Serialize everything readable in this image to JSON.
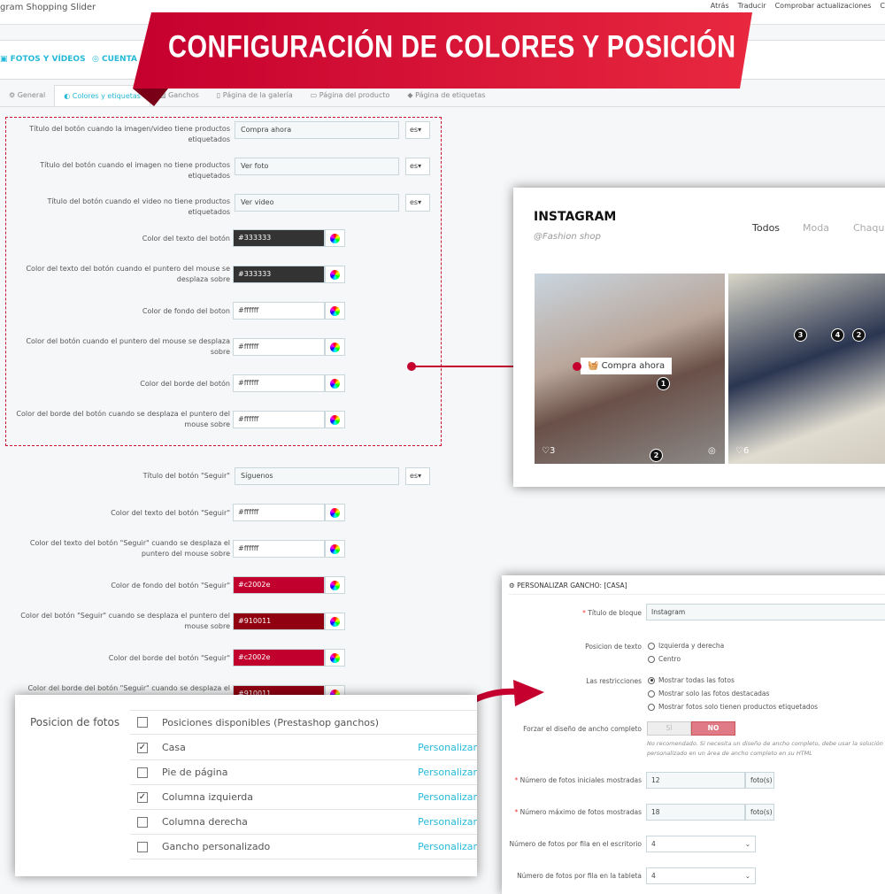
{
  "header": {
    "brand": "gram Shopping Slider",
    "links": [
      "Atrás",
      "Traducir",
      "Comprobar actualizaciones",
      "C"
    ]
  },
  "nav": {
    "items": [
      "FOTOS Y VÍDEOS",
      "CUENTA DE"
    ]
  },
  "tabs": [
    "General",
    "Colores y etiquetas",
    "Ganchos",
    "Página de la galería",
    "Página del producto",
    "Página de etiquetas"
  ],
  "banner": {
    "title": "CONFIGURACIÓN DE COLORES Y POSICIÓN"
  },
  "form": {
    "text_rows": [
      {
        "label": "Título del botón cuando la imagen/video tiene productos etiquetados",
        "value": "Compra ahora",
        "lang": "es"
      },
      {
        "label": "Título del botón cuando el imagen no tiene productos etiquetados",
        "value": "Ver foto",
        "lang": "es"
      },
      {
        "label": "Título del botón cuando el video no tiene productos etiquetados",
        "value": "Ver video",
        "lang": "es"
      }
    ],
    "color_rows": [
      {
        "label": "Color del texto del botón",
        "value": "#333333",
        "color": "#333333"
      },
      {
        "label": "Color del texto del botón cuando el puntero del mouse se desplaza sobre",
        "value": "#333333",
        "color": "#333333"
      },
      {
        "label": "Color de fondo del boton",
        "value": "#ffffff",
        "color": "#ffffff"
      },
      {
        "label": "Color del botón cuando el puntero del mouse se desplaza sobre",
        "value": "#ffffff",
        "color": "#ffffff"
      },
      {
        "label": "Color del borde del botón",
        "value": "#ffffff",
        "color": "#ffffff"
      },
      {
        "label": "Color del borde del botón cuando se desplaza el puntero del mouse sobre",
        "value": "#ffffff",
        "color": "#ffffff"
      }
    ],
    "follow_title": {
      "label": "Título del botón \"Seguir\"",
      "value": "Síguenos",
      "lang": "es"
    },
    "follow_rows": [
      {
        "label": "Color del texto del botón \"Seguir\"",
        "value": "#ffffff",
        "color": "#ffffff"
      },
      {
        "label": "Color del texto del botón \"Seguir\" cuando se desplaza el puntero del mouse sobre",
        "value": "#ffffff",
        "color": "#ffffff"
      },
      {
        "label": "Color de fondo del botón \"Seguir\"",
        "value": "#c2002e",
        "color": "#c2002e"
      },
      {
        "label": "Color del botón \"Seguir\" cuando se desplaza el puntero del mouse sobre",
        "value": "#910011",
        "color": "#910011"
      },
      {
        "label": "Color del borde del botón \"Seguir\"",
        "value": "#c2002e",
        "color": "#c2002e"
      },
      {
        "label": "Color del borde del botón \"Seguir\" cuando se desplaza el",
        "value": "#910011",
        "color": "#910011"
      }
    ]
  },
  "instagram": {
    "title": "INSTAGRAM",
    "subtitle": "@Fashion shop",
    "filters": [
      "Todos",
      "Moda",
      "Chaqu"
    ],
    "button": "Compra ahora",
    "likes": [
      "3",
      "6"
    ]
  },
  "positions": {
    "label": "Posicion de fotos",
    "header": "Posiciones disponibles (Prestashop ganchos)",
    "rows": [
      {
        "name": "Casa",
        "checked": true,
        "link": "Personalizar"
      },
      {
        "name": "Pie de página",
        "checked": false,
        "link": "Personalizar"
      },
      {
        "name": "Columna izquierda",
        "checked": true,
        "link": "Personalizar"
      },
      {
        "name": "Columna derecha",
        "checked": false,
        "link": "Personalizar"
      },
      {
        "name": "Gancho personalizado",
        "checked": false,
        "link": "Personalizar"
      }
    ]
  },
  "hook_panel": {
    "title": "PERSONALIZAR GANCHO: [CASA]",
    "block_title_label": "Título de bloque",
    "block_title": "Instagram",
    "text_pos_label": "Posicion de texto",
    "text_pos_options": [
      "Izquierda y derecha",
      "Centro"
    ],
    "restrictions_label": "Las restricciones",
    "restrictions_options": [
      "Mostrar todas las fotos",
      "Mostrar solo las fotos destacadas",
      "Mostrar fotos solo tienen productos etiquetados"
    ],
    "full_width_label": "Forzar el diseño de ancho completo",
    "yes": "SÍ",
    "no": "NO",
    "full_width_help": "No recomendado. Si necesita un diseño de ancho completo, debe usar la solución personalizado en un área de ancho completo en su HTML",
    "initial_label": "Número de fotos iniciales mostradas",
    "initial": "12",
    "max_label": "Número máximo de fotos mostradas",
    "max": "18",
    "unit": "foto(s)",
    "desktop_label": "Número de fotos por fila en el escritorio",
    "desktop": "4",
    "tablet_label": "Número de fotos por fila en la tableta",
    "tablet": "4"
  }
}
